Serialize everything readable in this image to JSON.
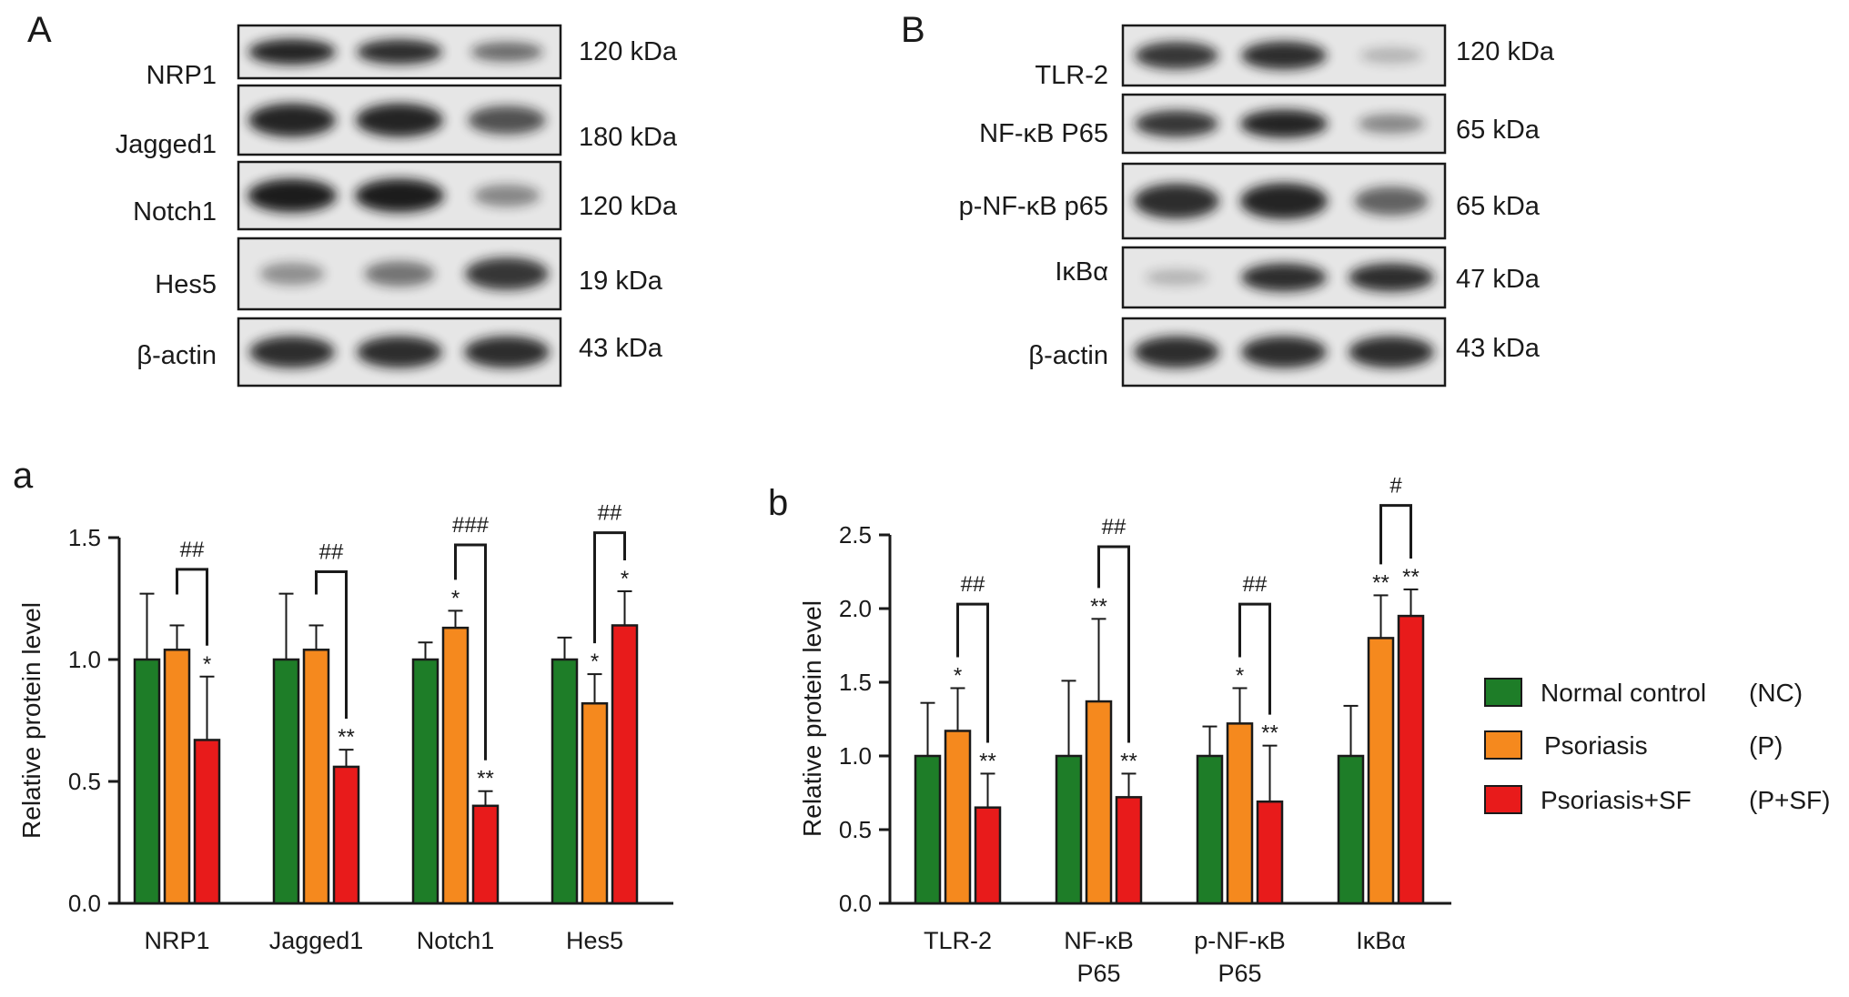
{
  "colors": {
    "NC": "#1e7d28",
    "P": "#f5891e",
    "PSF": "#e81b1b",
    "frame": "#1a1a1a",
    "blot_bg": "#e6e6e6",
    "band": "#151515"
  },
  "panels": {
    "A": "A",
    "B": "B",
    "a": "a",
    "b": "b"
  },
  "blots": [
    {
      "name": "A",
      "rows": [
        {
          "protein": "NRP1",
          "size": "120 kDa",
          "bands": [
            0.95,
            0.9,
            0.55
          ]
        },
        {
          "protein": "Jagged1",
          "size": "180 kDa",
          "bands": [
            0.95,
            0.95,
            0.7
          ]
        },
        {
          "protein": "Notch1",
          "size": "120 kDa",
          "bands": [
            1.0,
            1.0,
            0.4
          ]
        },
        {
          "protein": "Hes5",
          "size": "19 kDa",
          "bands": [
            0.35,
            0.5,
            0.85
          ]
        },
        {
          "protein": "β-actin",
          "size": "43 kDa",
          "bands": [
            0.9,
            0.9,
            0.9
          ]
        }
      ]
    },
    {
      "name": "B",
      "rows": [
        {
          "protein": "TLR-2",
          "size": "120 kDa",
          "bands": [
            0.85,
            0.9,
            0.15
          ]
        },
        {
          "protein": "NF-κB P65",
          "size": "65 kDa",
          "bands": [
            0.85,
            0.95,
            0.4
          ]
        },
        {
          "protein": "p-NF-κB p65",
          "size": "65 kDa",
          "bands": [
            0.9,
            0.95,
            0.6
          ]
        },
        {
          "protein": "IκBα",
          "size": "47 kDa",
          "bands": [
            0.15,
            0.9,
            0.9
          ]
        },
        {
          "protein": "β-actin",
          "size": "43 kDa",
          "bands": [
            0.9,
            0.9,
            0.9
          ]
        }
      ]
    }
  ],
  "chart_data": [
    {
      "type": "bar",
      "panel": "a",
      "ylabel": "Relative protein level",
      "ylim": [
        0,
        1.5
      ],
      "yticks": [
        "0.0",
        "0.5",
        "1.0",
        "1.5"
      ],
      "categories": [
        "NRP1",
        "Jagged1",
        "Notch1",
        "Hes5"
      ],
      "series": [
        {
          "name": "Normal control",
          "values": [
            1.0,
            1.0,
            1.0,
            1.0
          ],
          "errors": [
            0.27,
            0.27,
            0.07,
            0.09
          ],
          "marks": [
            "",
            "",
            "",
            ""
          ]
        },
        {
          "name": "Psoriasis",
          "values": [
            1.04,
            1.04,
            1.13,
            0.82
          ],
          "errors": [
            0.1,
            0.1,
            0.07,
            0.12
          ],
          "marks": [
            "",
            "",
            "*",
            "*"
          ]
        },
        {
          "name": "Psoriasis+SF",
          "values": [
            0.67,
            0.56,
            0.4,
            1.14
          ],
          "errors": [
            0.26,
            0.07,
            0.06,
            0.14
          ],
          "marks": [
            "*",
            "**",
            "**",
            "*"
          ]
        }
      ],
      "brackets": [
        {
          "category": 0,
          "label": "##",
          "top": 1.37
        },
        {
          "category": 1,
          "label": "##",
          "top": 1.36
        },
        {
          "category": 2,
          "label": "###",
          "top": 1.47
        },
        {
          "category": 3,
          "label": "##",
          "top": 1.52
        }
      ]
    },
    {
      "type": "bar",
      "panel": "b",
      "ylabel": "Relative protein level",
      "ylim": [
        0,
        2.5
      ],
      "yticks": [
        "0.0",
        "0.5",
        "1.0",
        "1.5",
        "2.0",
        "2.5"
      ],
      "categories": [
        [
          "TLR-2"
        ],
        [
          "NF-κB",
          "P65"
        ],
        [
          "p-NF-κB",
          "P65"
        ],
        [
          "IκBα"
        ]
      ],
      "series": [
        {
          "name": "Normal control",
          "values": [
            1.0,
            1.0,
            1.0,
            1.0
          ],
          "errors": [
            0.36,
            0.51,
            0.2,
            0.34
          ],
          "marks": [
            "",
            "",
            "",
            ""
          ]
        },
        {
          "name": "Psoriasis",
          "values": [
            1.17,
            1.37,
            1.22,
            1.8
          ],
          "errors": [
            0.29,
            0.56,
            0.24,
            0.29
          ],
          "marks": [
            "*",
            "**",
            "*",
            "**"
          ]
        },
        {
          "name": "Psoriasis+SF",
          "values": [
            0.65,
            0.72,
            0.69,
            1.95
          ],
          "errors": [
            0.23,
            0.16,
            0.38,
            0.18
          ],
          "marks": [
            "**",
            "**",
            "**",
            "**"
          ]
        }
      ],
      "brackets": [
        {
          "category": 0,
          "label": "##",
          "top": 2.03
        },
        {
          "category": 1,
          "label": "##",
          "top": 2.42
        },
        {
          "category": 2,
          "label": "##",
          "top": 2.03
        },
        {
          "category": 3,
          "label": "#",
          "top": 2.7
        }
      ]
    }
  ],
  "legend": [
    {
      "label": "Normal control",
      "abbr": "(NC)",
      "color": "#1e7d28"
    },
    {
      "label": "Psoriasis",
      "abbr": "(P)",
      "color": "#f5891e"
    },
    {
      "label": "Psoriasis+SF",
      "abbr": "(P+SF)",
      "color": "#e81b1b"
    }
  ]
}
